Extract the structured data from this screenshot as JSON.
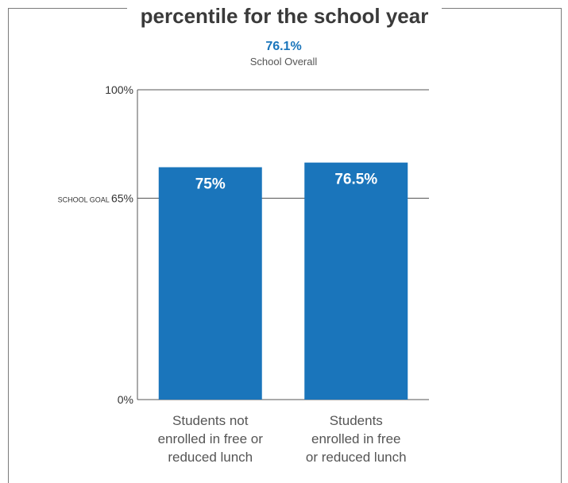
{
  "chart_data": {
    "type": "bar",
    "title": "percentile for the school year",
    "summary": {
      "value": "76.1%",
      "label": "School Overall"
    },
    "categories": [
      [
        "Students not",
        "enrolled in free or",
        "reduced lunch"
      ],
      [
        "Students",
        "enrolled in free",
        "or reduced lunch"
      ]
    ],
    "values": [
      75,
      76.5
    ],
    "value_labels": [
      "75%",
      "76.5%"
    ],
    "ylim": [
      0,
      100
    ],
    "y_ticks": [
      {
        "value": 0,
        "label": "0%"
      },
      {
        "value": 100,
        "label": "100%"
      }
    ],
    "goal": {
      "value": 65,
      "prefix": "SCHOOL GOAL",
      "label": "65%"
    },
    "bar_color": "#1a75bb",
    "grid": false
  }
}
